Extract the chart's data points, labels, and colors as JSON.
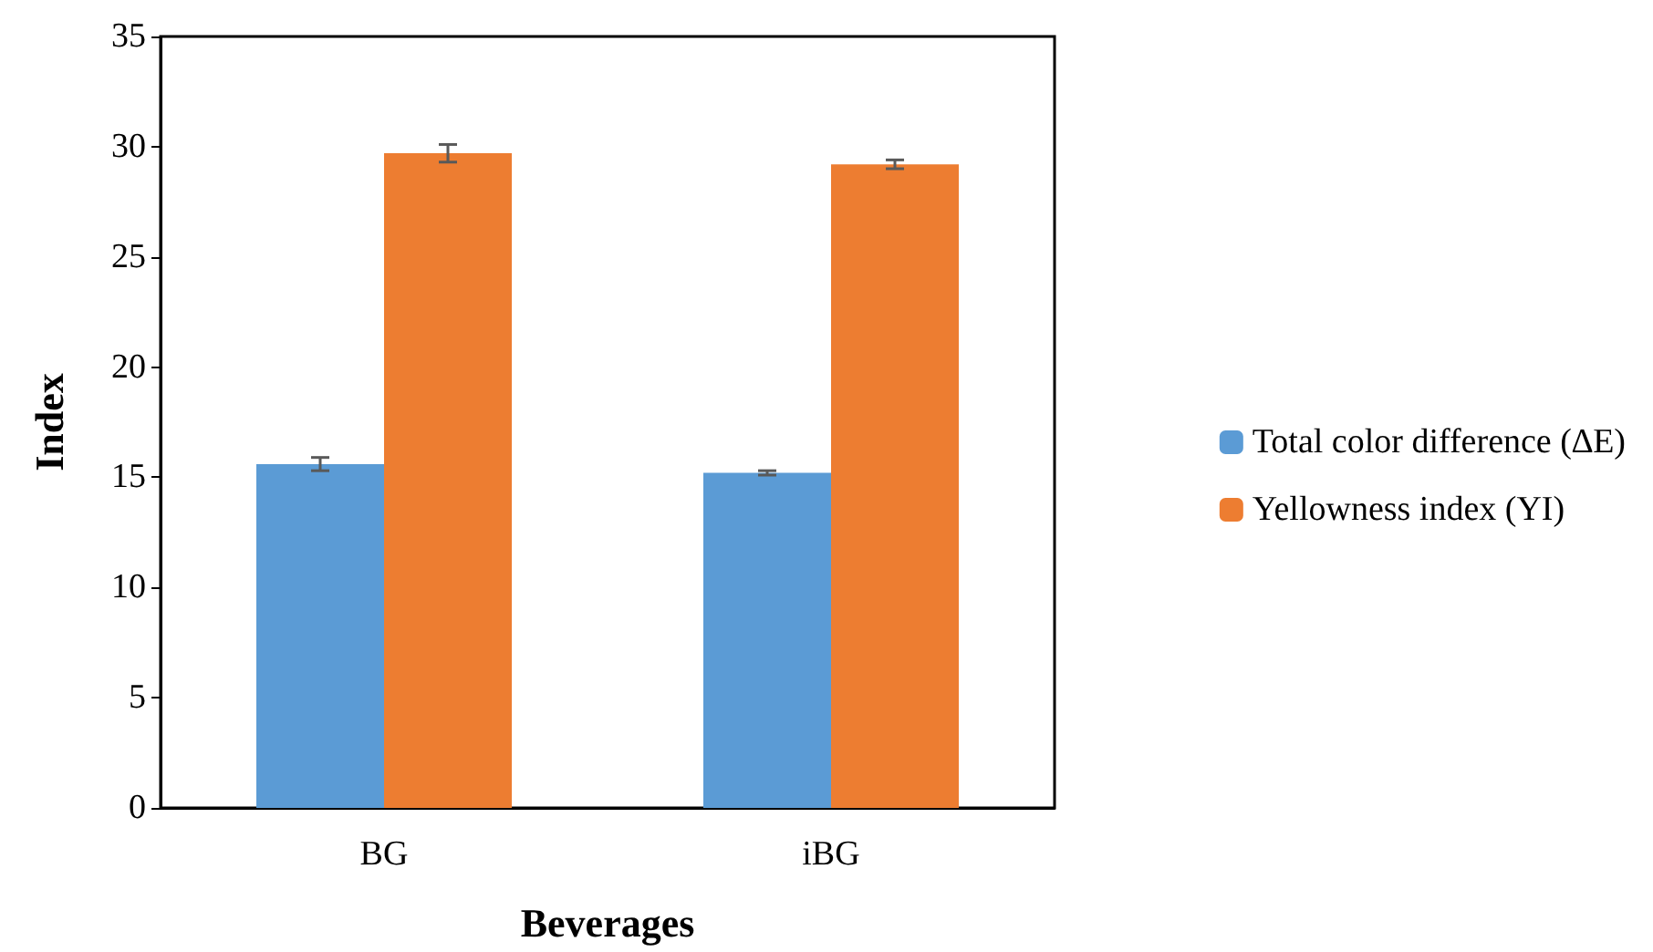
{
  "chart_data": {
    "type": "bar",
    "xlabel": "Beverages",
    "ylabel": "Index",
    "categories": [
      "BG",
      "iBG"
    ],
    "series": [
      {
        "name": "Total color difference (∆E)",
        "color": "#5b9bd5",
        "values": [
          15.6,
          15.2
        ],
        "errors": [
          0.3,
          0.1
        ]
      },
      {
        "name": "Yellowness index (YI)",
        "color": "#ed7d31",
        "values": [
          29.7,
          29.2
        ],
        "errors": [
          0.4,
          0.2
        ]
      }
    ],
    "ylim": [
      0,
      35
    ],
    "yticks": [
      0,
      5,
      10,
      15,
      20,
      25,
      30,
      35
    ],
    "grid": false,
    "legend": "right"
  }
}
